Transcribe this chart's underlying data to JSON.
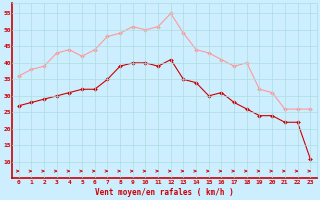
{
  "hours": [
    0,
    1,
    2,
    3,
    4,
    5,
    6,
    7,
    8,
    9,
    10,
    11,
    12,
    13,
    14,
    15,
    16,
    17,
    18,
    19,
    20,
    21,
    22,
    23
  ],
  "wind_mean": [
    27,
    28,
    29,
    30,
    31,
    32,
    32,
    35,
    39,
    40,
    40,
    39,
    41,
    35,
    34,
    30,
    31,
    28,
    26,
    24,
    24,
    22,
    22,
    11
  ],
  "wind_gust": [
    36,
    38,
    39,
    43,
    44,
    42,
    44,
    48,
    49,
    51,
    50,
    51,
    55,
    49,
    44,
    43,
    41,
    39,
    40,
    32,
    31,
    26,
    26,
    26
  ],
  "bg_color": "#cceeff",
  "grid_color": "#aadddd",
  "mean_color": "#cc0000",
  "gust_color": "#ff9999",
  "arrow_color": "#cc0000",
  "xlabel": "Vent moyen/en rafales ( km/h )",
  "ylim": [
    5,
    58
  ],
  "yticks": [
    10,
    15,
    20,
    25,
    30,
    35,
    40,
    45,
    50,
    55
  ],
  "xlim": [
    -0.5,
    23.5
  ]
}
